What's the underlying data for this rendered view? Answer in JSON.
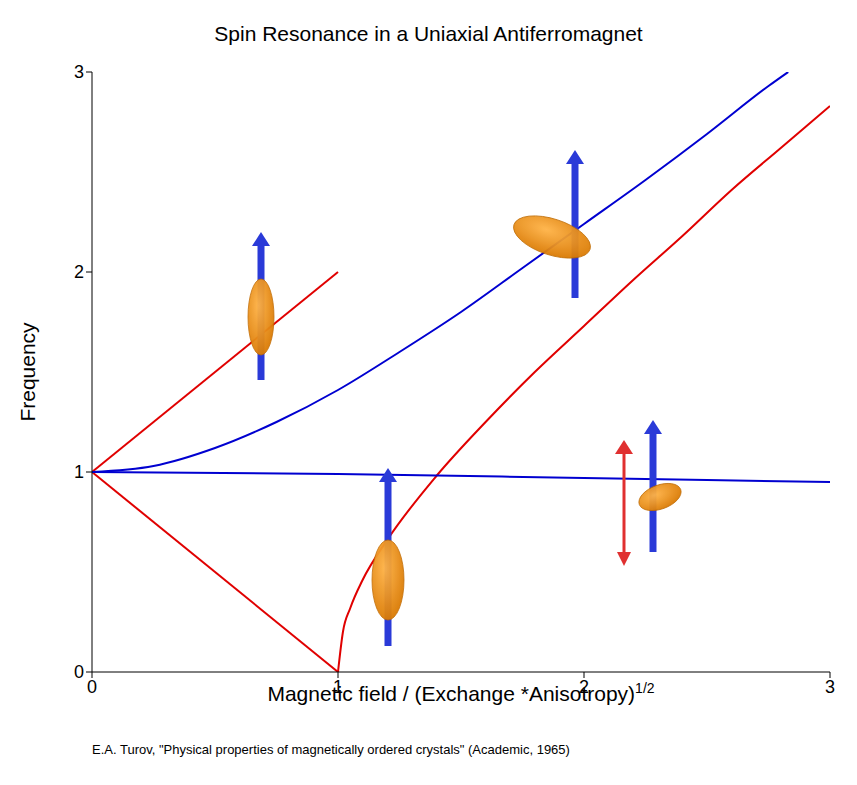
{
  "chart_data": {
    "type": "line",
    "title": "Spin Resonance in a Uniaxial Antiferromagnet",
    "x_label": "Magnetic field / (Exchange *Anisotropy)",
    "x_label_exponent": "1/2",
    "y_label": "Frequency",
    "source": "E.A. Turov, \"Physical properties of magnetically ordered crystals\" (Academic, 1965)",
    "xlim": [
      0,
      3
    ],
    "xticks": [
      0,
      1,
      2,
      3
    ],
    "ylim": [
      0,
      3
    ],
    "yticks": [
      0,
      1,
      2,
      3
    ],
    "grid": false,
    "series": [
      {
        "color": "#e00000",
        "x": [
          0,
          1
        ],
        "values": [
          1,
          2
        ]
      },
      {
        "color": "#e00000",
        "x": [
          0,
          1
        ],
        "values": [
          1,
          0
        ]
      },
      {
        "color": "#e00000",
        "x": [
          1,
          1.02,
          1.05,
          1.1,
          1.2,
          1.4,
          1.6,
          1.8,
          2,
          2.2,
          2.4,
          2.6,
          2.8,
          3
        ],
        "values": [
          0,
          0.2,
          0.32,
          0.46,
          0.66,
          0.98,
          1.25,
          1.5,
          1.73,
          1.96,
          2.18,
          2.41,
          2.62,
          2.83
        ]
      },
      {
        "color": "#0000d0",
        "x": [
          0,
          0.25,
          0.5,
          0.75,
          1,
          1.25,
          1.5,
          1.75,
          2,
          2.25,
          2.5,
          2.75,
          2.83
        ],
        "values": [
          1,
          1.03,
          1.12,
          1.25,
          1.41,
          1.6,
          1.8,
          2.02,
          2.24,
          2.46,
          2.69,
          2.93,
          3
        ]
      },
      {
        "color": "#0000d0",
        "x": [
          0,
          1,
          2,
          3
        ],
        "values": [
          1,
          0.99,
          0.97,
          0.95
        ]
      }
    ]
  }
}
